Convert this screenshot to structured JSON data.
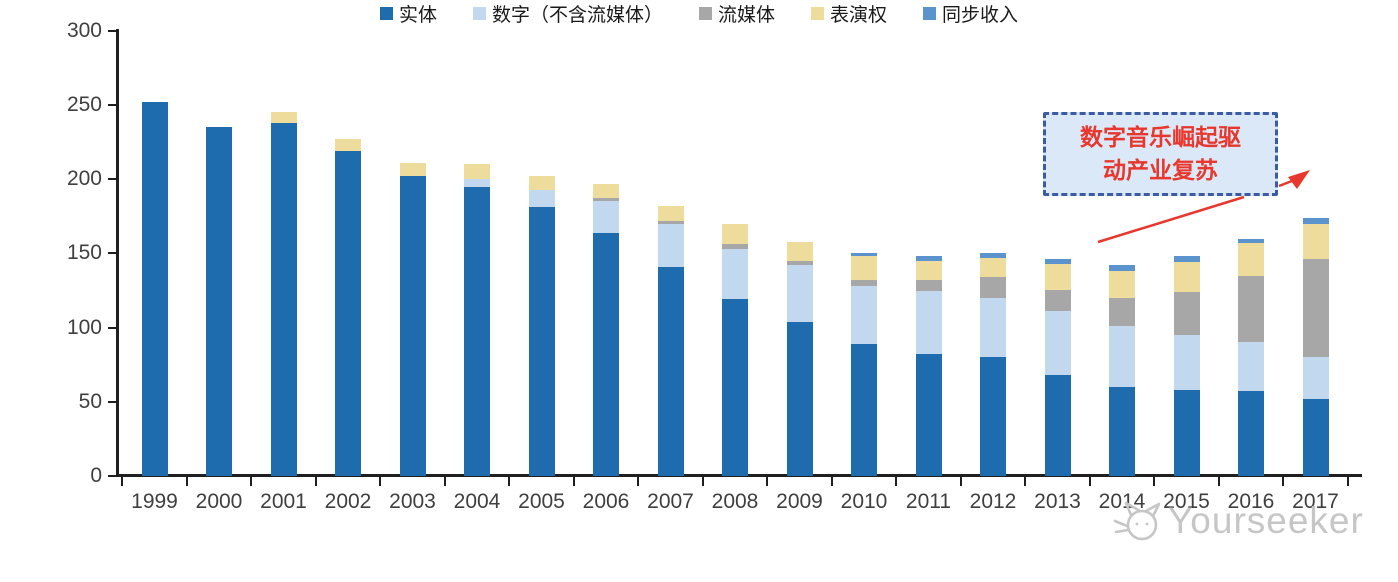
{
  "chart_data": {
    "type": "bar",
    "stacked": true,
    "title": "",
    "xlabel": "",
    "ylabel": "",
    "categories": [
      "1999",
      "2000",
      "2001",
      "2002",
      "2003",
      "2004",
      "2005",
      "2006",
      "2007",
      "2008",
      "2009",
      "2010",
      "2011",
      "2012",
      "2013",
      "2014",
      "2015",
      "2016",
      "2017"
    ],
    "series": [
      {
        "name": "实体",
        "color": "#1E6BAD",
        "values": [
          252,
          235,
          238,
          219,
          202,
          195,
          181,
          164,
          141,
          119,
          104,
          89,
          82,
          80,
          68,
          60,
          58,
          57,
          52
        ]
      },
      {
        "name": "数字（不含流媒体）",
        "color": "#C2D8EF",
        "values": [
          0,
          0,
          0,
          0,
          0,
          5,
          12,
          21,
          29,
          34,
          38,
          39,
          43,
          40,
          43,
          41,
          37,
          33,
          28
        ]
      },
      {
        "name": "流媒体",
        "color": "#A7A7A7",
        "values": [
          0,
          0,
          0,
          0,
          0,
          0,
          0,
          2,
          2,
          3,
          3,
          4,
          7,
          14,
          14,
          19,
          29,
          45,
          66
        ]
      },
      {
        "name": "表演权",
        "color": "#EDDC9C",
        "values": [
          0,
          0,
          7,
          8,
          9,
          10,
          9,
          10,
          10,
          14,
          13,
          16,
          13,
          13,
          18,
          18,
          20,
          22,
          24
        ]
      },
      {
        "name": "同步收入",
        "color": "#5B93CD",
        "values": [
          0,
          0,
          0,
          0,
          0,
          0,
          0,
          0,
          0,
          0,
          0,
          2,
          3,
          3,
          3,
          4,
          4,
          3,
          4
        ]
      }
    ],
    "ylim": [
      0,
      300
    ],
    "yticks": [
      "0",
      "50",
      "100",
      "150",
      "200",
      "250",
      "300"
    ],
    "grid": false,
    "legend_position": "bottom"
  },
  "annotation": {
    "line1": "数字音乐崛起驱",
    "line2": "动产业复苏",
    "box_fill": "#DBE8F7",
    "box_border_color": "#3B5BA5",
    "text_color": "#E8372C",
    "arrow_color": "#E8372C"
  },
  "watermark": {
    "text": "Yourseeker",
    "icon": "cat-logo-icon",
    "color": "#C6C6C6"
  }
}
